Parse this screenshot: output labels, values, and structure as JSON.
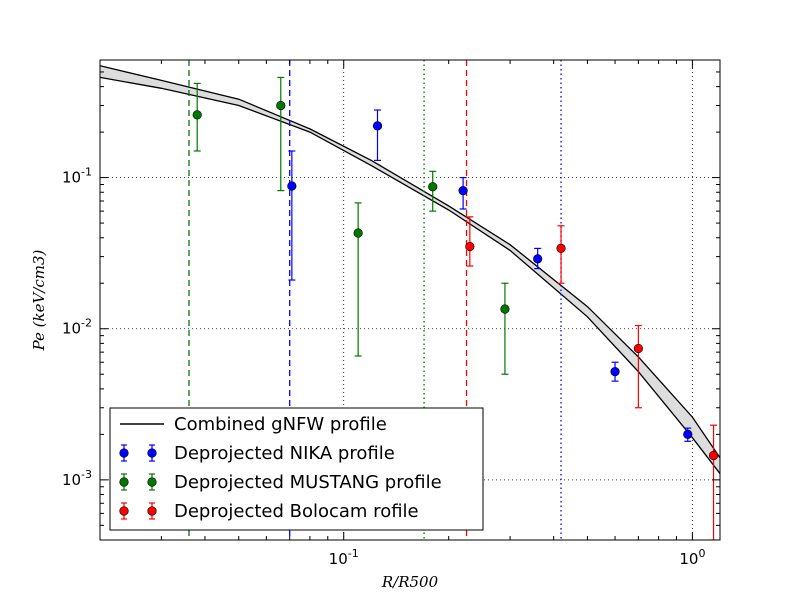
{
  "chart_data": {
    "type": "scatter",
    "x_scale": "log",
    "y_scale": "log",
    "xlim": [
      0.02,
      1.2
    ],
    "ylim": [
      0.0004,
      0.6
    ],
    "xlabel": "R/R500",
    "ylabel": "Pe (keV/cm3)",
    "x_ticks": [
      {
        "value": 0.1,
        "mantissa": "10",
        "exp": "-1"
      },
      {
        "value": 1,
        "mantissa": "10",
        "exp": "0"
      }
    ],
    "y_ticks": [
      {
        "value": 0.001,
        "mantissa": "10",
        "exp": "-3"
      },
      {
        "value": 0.01,
        "mantissa": "10",
        "exp": "-2"
      },
      {
        "value": 0.1,
        "mantissa": "10",
        "exp": "-1"
      }
    ],
    "grid": "dotted",
    "legend_position": "lower-left",
    "model": {
      "name": "Combined gNFW profile",
      "color": "#000000",
      "upper": [
        [
          0.02,
          0.55
        ],
        [
          0.03,
          0.44
        ],
        [
          0.05,
          0.33
        ],
        [
          0.08,
          0.21
        ],
        [
          0.12,
          0.13
        ],
        [
          0.2,
          0.065
        ],
        [
          0.3,
          0.036
        ],
        [
          0.5,
          0.014
        ],
        [
          0.7,
          0.0065
        ],
        [
          1.0,
          0.0026
        ],
        [
          1.2,
          0.0014
        ]
      ],
      "lower": [
        [
          0.02,
          0.46
        ],
        [
          0.03,
          0.39
        ],
        [
          0.05,
          0.3
        ],
        [
          0.08,
          0.2
        ],
        [
          0.12,
          0.12
        ],
        [
          0.2,
          0.061
        ],
        [
          0.3,
          0.033
        ],
        [
          0.5,
          0.012
        ],
        [
          0.7,
          0.0052
        ],
        [
          1.0,
          0.0019
        ],
        [
          1.2,
          0.0011
        ]
      ]
    },
    "vlines": [
      {
        "x": 0.036,
        "color": "#007700",
        "style": "dashed"
      },
      {
        "x": 0.07,
        "color": "#0000ff",
        "style": "dashed"
      },
      {
        "x": 0.17,
        "color": "#007700",
        "style": "dotted"
      },
      {
        "x": 0.225,
        "color": "#ff0000",
        "style": "dashed"
      },
      {
        "x": 0.42,
        "color": "#0000ff",
        "style": "dotted"
      }
    ],
    "series": [
      {
        "name": "Deprojected NIKA profile",
        "color": "#0000ff",
        "points": [
          {
            "x": 0.071,
            "y": 0.088,
            "lo": 0.021,
            "hi": 0.15
          },
          {
            "x": 0.125,
            "y": 0.22,
            "lo": 0.13,
            "hi": 0.28
          },
          {
            "x": 0.22,
            "y": 0.082,
            "lo": 0.062,
            "hi": 0.1
          },
          {
            "x": 0.36,
            "y": 0.029,
            "lo": 0.025,
            "hi": 0.034
          },
          {
            "x": 0.6,
            "y": 0.0052,
            "lo": 0.0045,
            "hi": 0.006
          },
          {
            "x": 0.97,
            "y": 0.002,
            "lo": 0.0018,
            "hi": 0.0022
          }
        ]
      },
      {
        "name": "Deprojected MUSTANG profile",
        "color": "#007700",
        "points": [
          {
            "x": 0.038,
            "y": 0.26,
            "lo": 0.15,
            "hi": 0.42
          },
          {
            "x": 0.066,
            "y": 0.3,
            "lo": 0.082,
            "hi": 0.46
          },
          {
            "x": 0.11,
            "y": 0.043,
            "lo": 0.0066,
            "hi": 0.068
          },
          {
            "x": 0.18,
            "y": 0.087,
            "lo": 0.06,
            "hi": 0.11
          },
          {
            "x": 0.29,
            "y": 0.0135,
            "lo": 0.005,
            "hi": 0.02
          }
        ]
      },
      {
        "name": "Deprojected Bolocam rofile",
        "color": "#ff0000",
        "points": [
          {
            "x": 0.23,
            "y": 0.035,
            "lo": 0.026,
            "hi": 0.055
          },
          {
            "x": 0.42,
            "y": 0.034,
            "lo": 0.02,
            "hi": 0.048
          },
          {
            "x": 0.7,
            "y": 0.0074,
            "lo": 0.003,
            "hi": 0.0105
          },
          {
            "x": 1.15,
            "y": 0.00145,
            "lo": 0.0004,
            "hi": 0.0023
          }
        ]
      }
    ]
  }
}
